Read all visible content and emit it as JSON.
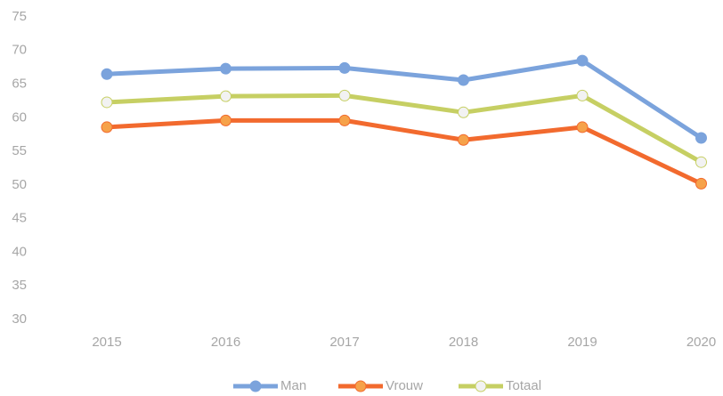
{
  "chart_data": {
    "type": "line",
    "categories": [
      "2015",
      "2016",
      "2017",
      "2018",
      "2019",
      "2020"
    ],
    "series": [
      {
        "name": "Man",
        "color": "#7ba3dc",
        "marker_color": "#7ba3dc",
        "values": [
          66.5,
          67.3,
          67.4,
          65.6,
          68.5,
          57.0
        ]
      },
      {
        "name": "Vrouw",
        "color": "#f26a2e",
        "marker_color": "#f6a24a",
        "values": [
          58.6,
          59.6,
          59.6,
          56.7,
          58.6,
          50.2
        ]
      },
      {
        "name": "Totaal",
        "color": "#c6cf63",
        "marker_color": "#f2f2f2",
        "values": [
          62.3,
          63.2,
          63.3,
          60.8,
          63.3,
          53.4
        ]
      }
    ],
    "ylim": [
      30,
      75
    ],
    "yticks": [
      30,
      35,
      40,
      45,
      50,
      55,
      60,
      65,
      70,
      75
    ],
    "grid": false,
    "legend": "bottom"
  }
}
